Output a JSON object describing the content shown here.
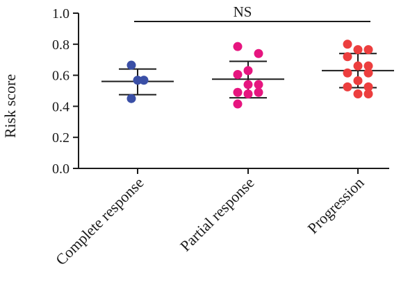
{
  "chart_data": {
    "type": "scatter",
    "ylabel": "Risk score",
    "ylim": [
      0.0,
      1.0
    ],
    "yticks": [
      "0.0",
      "0.2",
      "0.4",
      "0.6",
      "0.8",
      "1.0"
    ],
    "yticks_values": [
      0.0,
      0.2,
      0.4,
      0.6,
      0.8,
      1.0
    ],
    "categories": [
      "Complete response",
      "Partial response",
      "Progression"
    ],
    "significance": {
      "label": "NS",
      "from": "Complete response",
      "to": "Progression"
    },
    "series": [
      {
        "color": "#3a4fa6",
        "points": [
          0.665,
          0.568,
          0.568,
          0.45
        ],
        "mean": 0.56,
        "sd_upper": 0.64,
        "sd_lower": 0.475
      },
      {
        "color": "#e6157f",
        "points": [
          0.785,
          0.74,
          0.63,
          0.605,
          0.54,
          0.54,
          0.49,
          0.49,
          0.48,
          0.415
        ],
        "mean": 0.575,
        "sd_upper": 0.69,
        "sd_lower": 0.455
      },
      {
        "color": "#ec3e3e",
        "points": [
          0.8,
          0.765,
          0.765,
          0.72,
          0.66,
          0.66,
          0.615,
          0.615,
          0.565,
          0.525,
          0.525,
          0.48,
          0.48
        ],
        "mean": 0.63,
        "sd_upper": 0.74,
        "sd_lower": 0.52
      }
    ]
  }
}
